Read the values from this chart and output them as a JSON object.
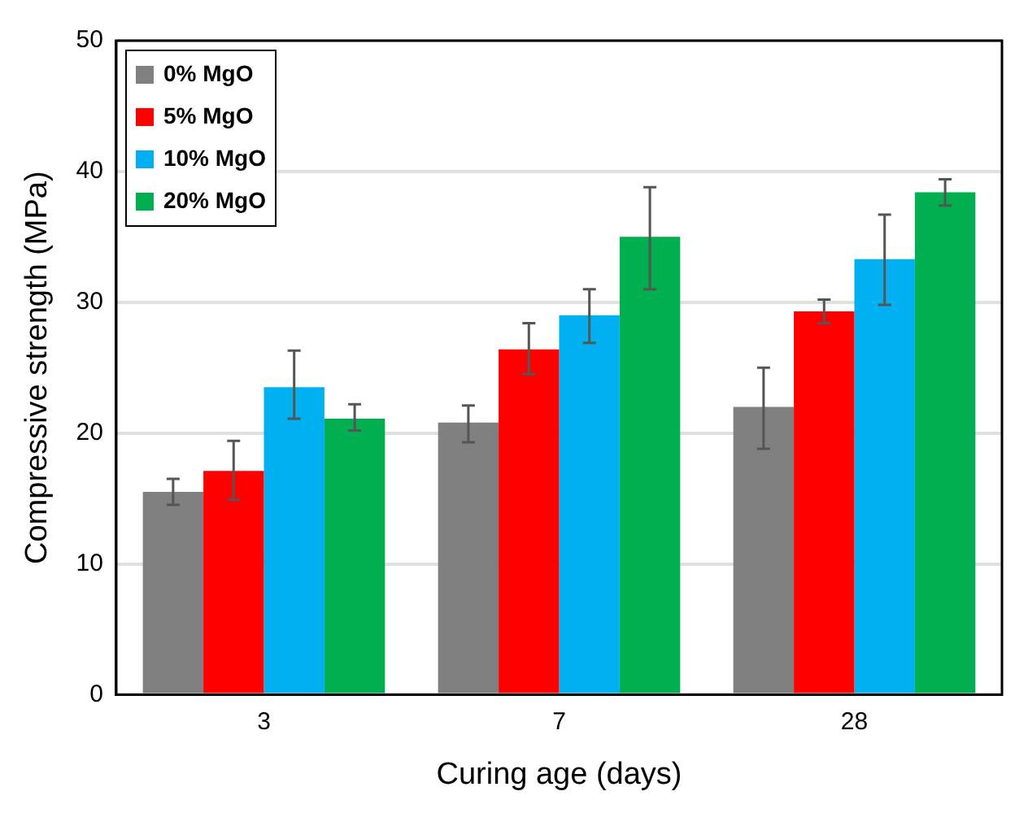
{
  "chart_data": {
    "type": "bar",
    "xlabel": "Curing age (days)",
    "ylabel": "Compressive strength (MPa)",
    "categories": [
      "3",
      "7",
      "28"
    ],
    "ylim": [
      0,
      50
    ],
    "yticks": [
      0,
      10,
      20,
      30,
      40,
      50
    ],
    "grid": "y",
    "legend": "top left",
    "series": [
      {
        "name": "0% MgO",
        "color": "#808080",
        "values": [
          15.5,
          20.8,
          22.0
        ],
        "errors": [
          [
            14.5,
            16.5
          ],
          [
            19.3,
            22.1
          ],
          [
            18.8,
            25.0
          ]
        ]
      },
      {
        "name": "5% MgO",
        "color": "#ff0000",
        "values": [
          17.1,
          26.4,
          29.3
        ],
        "errors": [
          [
            14.9,
            19.4
          ],
          [
            24.5,
            28.4
          ],
          [
            28.4,
            30.2
          ]
        ]
      },
      {
        "name": "10% MgO",
        "color": "#00b0f0",
        "values": [
          23.5,
          29.0,
          33.3
        ],
        "errors": [
          [
            21.1,
            26.3
          ],
          [
            26.9,
            31.0
          ],
          [
            29.8,
            36.7
          ]
        ]
      },
      {
        "name": "20% MgO",
        "color": "#00b050",
        "values": [
          21.1,
          35.0,
          38.4
        ],
        "errors": [
          [
            20.2,
            22.2
          ],
          [
            31.0,
            38.8
          ],
          [
            37.4,
            39.4
          ]
        ]
      }
    ]
  }
}
